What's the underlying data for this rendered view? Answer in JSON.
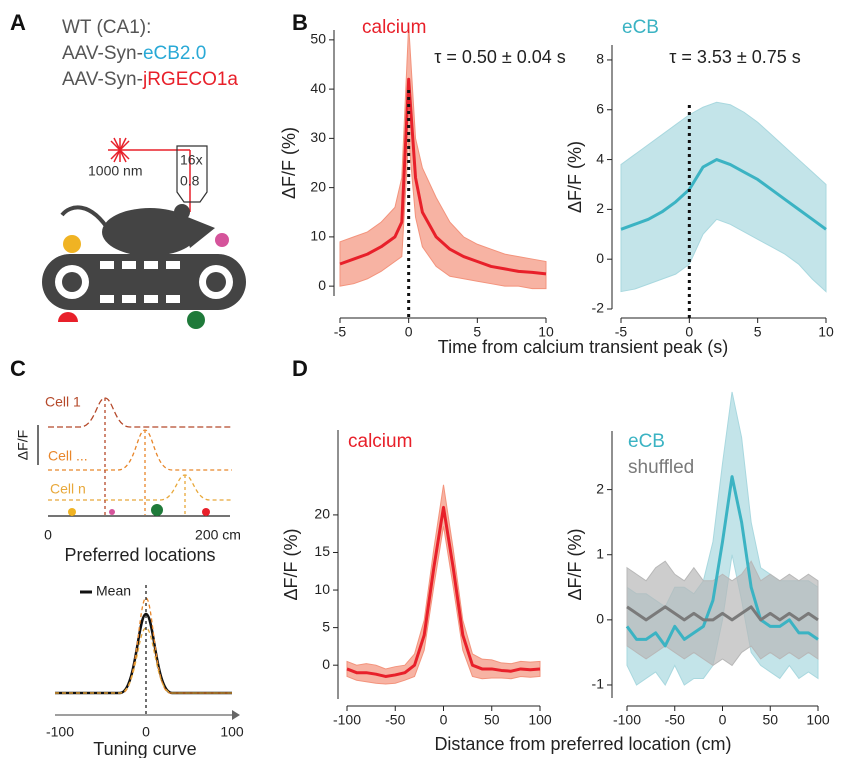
{
  "panel_labels": [
    "A",
    "B",
    "C",
    "D"
  ],
  "panel_a": {
    "line1": "WT (CA1):",
    "line2_prefix": "AAV-Syn-",
    "line2_sensor": "eCB2.0",
    "line3_prefix": "AAV-Syn-",
    "line3_sensor": "jRGECO1a",
    "laser": "1000 nm",
    "objective_mag": "16x",
    "objective_na": "0.8"
  },
  "panel_c": {
    "cells": [
      "Cell 1",
      "Cell ...",
      "Cell n"
    ],
    "y_label": "ΔF/F",
    "axis_start": "0",
    "axis_end": "200 cm",
    "axis_title": "Preferred locations",
    "legend": "Mean",
    "tuning_ticks": [
      "-100",
      "0",
      "100"
    ],
    "tuning_title": "Tuning curve"
  },
  "chart_data": [
    {
      "type": "line",
      "ylabel": "ΔF/F (%)",
      "xlabel": "Time from calcium transient peak (s)",
      "annotation": "τ = 0.50 ± 0.04 s",
      "x": [
        -5,
        -4,
        -3,
        -2,
        -1,
        -0.5,
        0,
        0.5,
        1,
        2,
        3,
        4,
        5,
        6,
        7,
        8,
        9,
        10
      ],
      "xlim": [
        -5,
        10
      ],
      "ylim": [
        -2,
        52
      ],
      "xticks": [
        -5,
        0,
        5,
        10
      ],
      "yticks": [
        0,
        10,
        20,
        30,
        40,
        50
      ],
      "vline": 0,
      "series": [
        {
          "name": "calcium",
          "color": "#e8202a",
          "band_color": "#f3937c",
          "values": [
            4.5,
            5.5,
            6.5,
            8,
            10,
            13,
            42,
            22,
            15,
            10,
            7.5,
            6,
            5,
            4,
            3.5,
            3,
            2.8,
            2.5
          ],
          "upper": [
            9,
            10,
            11,
            13,
            16,
            22,
            53,
            30,
            24,
            18,
            13,
            10,
            8.5,
            7.5,
            6.5,
            6,
            5.5,
            5
          ],
          "lower": [
            0,
            0.5,
            1.5,
            3,
            5,
            6,
            30,
            14,
            8,
            4,
            2,
            1.5,
            1,
            0.5,
            0,
            0,
            -0.5,
            -0.5
          ]
        }
      ]
    },
    {
      "type": "line",
      "ylabel": "ΔF/F (%)",
      "annotation": "τ = 3.53 ± 0.75 s",
      "x": [
        -5,
        -4,
        -3,
        -2,
        -1,
        0,
        1,
        2,
        3,
        4,
        5,
        6,
        7,
        8,
        9,
        10
      ],
      "xlim": [
        -5,
        10
      ],
      "ylim": [
        -2,
        8.6
      ],
      "xticks": [
        -5,
        0,
        5,
        10
      ],
      "yticks": [
        -2,
        0,
        2,
        4,
        6,
        8
      ],
      "vline": 0,
      "series": [
        {
          "name": "eCB",
          "color": "#3bb3c3",
          "band_color": "#a9d8df",
          "values": [
            1.2,
            1.4,
            1.6,
            1.9,
            2.3,
            2.8,
            3.7,
            4.0,
            3.8,
            3.5,
            3.2,
            2.8,
            2.4,
            2.0,
            1.6,
            1.2
          ],
          "upper": [
            3.8,
            4.2,
            4.6,
            5,
            5.4,
            5.8,
            6.1,
            6.3,
            6.2,
            5.9,
            5.5,
            5.0,
            4.5,
            4.0,
            3.5,
            3.0
          ],
          "lower": [
            -1.3,
            -1.2,
            -1.0,
            -0.8,
            -0.6,
            -0.2,
            1.0,
            1.6,
            1.4,
            1.1,
            0.8,
            0.5,
            0.2,
            -0.2,
            -0.8,
            -1.3
          ]
        }
      ]
    },
    {
      "type": "line",
      "ylabel": "ΔF/F (%)",
      "xlabel": "Distance from preferred location (cm)",
      "x": [
        -100,
        -90,
        -80,
        -70,
        -60,
        -50,
        -40,
        -30,
        -20,
        -10,
        0,
        10,
        20,
        30,
        40,
        50,
        60,
        70,
        80,
        90,
        100
      ],
      "xlim": [
        -100,
        100
      ],
      "ylim": [
        -4.5,
        31.3
      ],
      "xticks": [
        -100,
        -50,
        0,
        50,
        100
      ],
      "yticks": [
        0,
        5,
        10,
        15,
        20
      ],
      "series": [
        {
          "name": "calcium",
          "color": "#e8202a",
          "band_color": "#f3937c",
          "values": [
            -0.5,
            -1,
            -1,
            -1.2,
            -1.5,
            -1.3,
            -1,
            0,
            4,
            13,
            21,
            13,
            4,
            0,
            -0.5,
            -0.5,
            -0.7,
            -0.8,
            -0.5,
            -0.6,
            -0.5
          ],
          "upper": [
            0.5,
            0,
            0.2,
            0,
            -0.5,
            -0.2,
            0,
            1.5,
            6,
            15.5,
            24,
            15.5,
            6,
            1.5,
            0.8,
            0.7,
            0.3,
            0.2,
            0.5,
            0.4,
            0.5
          ],
          "lower": [
            -1.5,
            -2,
            -2.2,
            -2.4,
            -2.5,
            -2.4,
            -2,
            -1.5,
            2,
            10.5,
            18.5,
            10.5,
            2,
            -1.5,
            -1.8,
            -1.7,
            -1.7,
            -1.8,
            -1.5,
            -1.6,
            -1.5
          ]
        }
      ]
    },
    {
      "type": "line",
      "ylabel": "ΔF/F (%)",
      "x": [
        -100,
        -90,
        -80,
        -70,
        -60,
        -50,
        -40,
        -30,
        -20,
        -10,
        0,
        10,
        20,
        30,
        40,
        50,
        60,
        70,
        80,
        90,
        100
      ],
      "xlim": [
        -100,
        100
      ],
      "ylim": [
        -1.2,
        2.9
      ],
      "xticks": [
        -100,
        -50,
        0,
        50,
        100
      ],
      "yticks": [
        -1,
        0,
        1,
        2
      ],
      "series": [
        {
          "name": "eCB",
          "color": "#3bb3c3",
          "band_color": "#a9d8df",
          "values": [
            -0.1,
            -0.3,
            -0.3,
            -0.2,
            -0.4,
            -0.1,
            -0.3,
            -0.2,
            -0.1,
            0.3,
            1.2,
            2.2,
            1.5,
            0.5,
            0.0,
            -0.1,
            -0.1,
            0.0,
            -0.2,
            -0.2,
            -0.3
          ],
          "upper": [
            0.5,
            0.4,
            0.4,
            0.3,
            0.2,
            0.5,
            0.5,
            0.4,
            0.6,
            1.2,
            2.4,
            3.5,
            2.8,
            1.5,
            0.8,
            0.7,
            0.6,
            0.6,
            0.6,
            0.6,
            0.5
          ],
          "lower": [
            -0.7,
            -1.0,
            -0.9,
            -0.8,
            -1.0,
            -0.7,
            -1.0,
            -0.9,
            -0.9,
            -0.7,
            0.0,
            1.0,
            0.3,
            -0.5,
            -0.7,
            -0.8,
            -0.9,
            -0.7,
            -0.9,
            -0.8,
            -0.9
          ]
        },
        {
          "name": "shuffled",
          "color": "#7a7a7a",
          "band_color": "#b8b8b8",
          "values": [
            0.2,
            0.1,
            0.0,
            0.1,
            0.2,
            0.1,
            0.0,
            0.1,
            0.0,
            0.0,
            0.1,
            0.0,
            0.1,
            0.2,
            0.0,
            0.1,
            0.0,
            0.1,
            0.0,
            0.1,
            0.0
          ],
          "upper": [
            0.8,
            0.7,
            0.6,
            0.8,
            0.9,
            0.7,
            0.6,
            0.8,
            0.6,
            0.6,
            0.7,
            0.6,
            0.7,
            0.9,
            0.6,
            0.7,
            0.6,
            0.7,
            0.6,
            0.7,
            0.6
          ],
          "lower": [
            -0.4,
            -0.5,
            -0.6,
            -0.5,
            -0.4,
            -0.5,
            -0.6,
            -0.5,
            -0.6,
            -0.7,
            -0.6,
            -0.7,
            -0.5,
            -0.4,
            -0.6,
            -0.5,
            -0.6,
            -0.5,
            -0.6,
            -0.5,
            -0.6
          ]
        }
      ]
    }
  ]
}
